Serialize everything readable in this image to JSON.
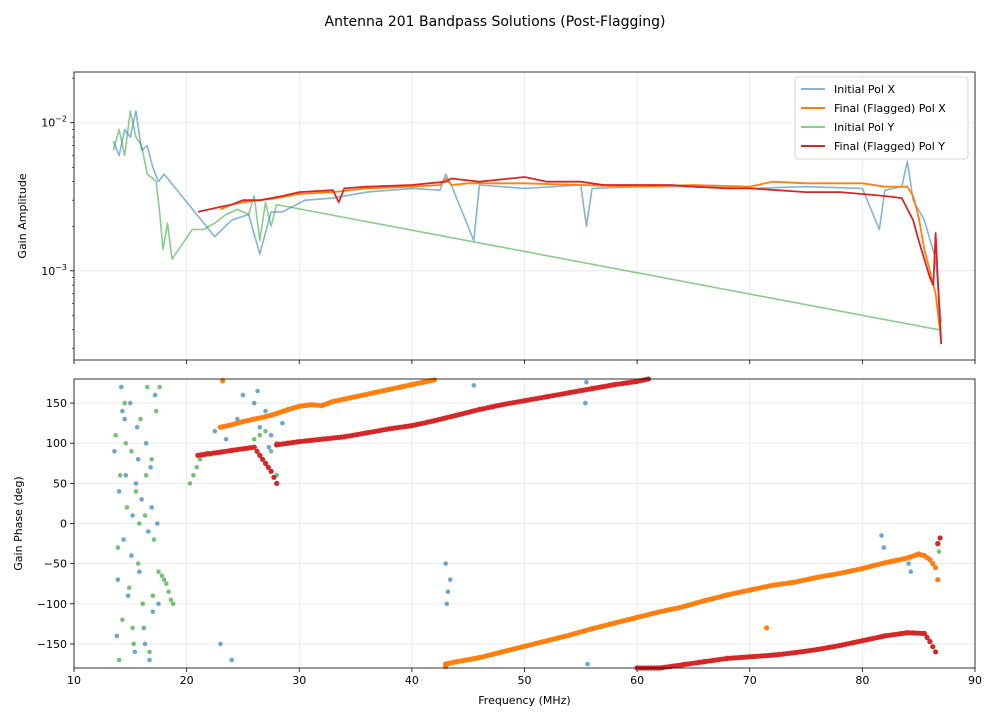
{
  "title": "Antenna 201 Bandpass Solutions (Post-Flagging)",
  "colors": {
    "initial_x": "#1f77b4",
    "final_x": "#ff7f0e",
    "initial_y": "#2ca02c",
    "final_y": "#d62728"
  },
  "chart_data": [
    {
      "type": "line",
      "panel": "top",
      "xlabel": "",
      "ylabel": "Gain Amplitude",
      "yscale": "log",
      "xlim": [
        10,
        90
      ],
      "ylim": [
        0.00025,
        0.022
      ],
      "grid": true,
      "legend_placement": "top-right",
      "y_ticks": [
        {
          "value": 0.01,
          "base": "10",
          "exp": "−2"
        },
        {
          "value": 0.001,
          "base": "10",
          "exp": "−3"
        }
      ],
      "x_ticks": [
        10,
        20,
        30,
        40,
        50,
        60,
        70,
        80,
        90
      ],
      "series": [
        {
          "name": "Initial Pol X",
          "color": "#1f77b4",
          "x": [
            13.5,
            14.0,
            14.5,
            15.0,
            15.5,
            16.0,
            16.5,
            17.0,
            17.5,
            18.0,
            22.5,
            24.0,
            25.5,
            26.5,
            27.5,
            28.5,
            30.5,
            33.0,
            36.0,
            40.0,
            42.5,
            43.0,
            43.5,
            45.5,
            46.0,
            50.0,
            55.0,
            55.5,
            56.0,
            60.0,
            65.0,
            70.0,
            75.0,
            80.0,
            81.5,
            82.0,
            83.5,
            84.0,
            84.5,
            85.5,
            86.5,
            87.0
          ],
          "y": [
            0.0075,
            0.006,
            0.009,
            0.008,
            0.012,
            0.0065,
            0.007,
            0.005,
            0.004,
            0.0045,
            0.0017,
            0.0022,
            0.0024,
            0.0013,
            0.0025,
            0.0025,
            0.003,
            0.0031,
            0.0034,
            0.0036,
            0.0035,
            0.0045,
            0.0038,
            0.0016,
            0.0038,
            0.0036,
            0.0038,
            0.002,
            0.0036,
            0.0037,
            0.0037,
            0.0036,
            0.0037,
            0.0036,
            0.0019,
            0.0035,
            0.0037,
            0.0055,
            0.003,
            0.0022,
            0.0012,
            0.00045
          ]
        },
        {
          "name": "Final (Flagged) Pol X",
          "color": "#ff7f0e",
          "x": [
            23.0,
            24.0,
            25.0,
            26.5,
            28.0,
            30.0,
            33.0,
            36.0,
            40.0,
            42.5,
            43.0,
            43.5,
            45.0,
            50.0,
            55.0,
            60.0,
            65.0,
            70.0,
            72.0,
            75.0,
            78.0,
            80.0,
            82.0,
            84.0,
            84.5,
            85.0,
            85.5,
            86.0,
            86.5,
            86.8,
            87.0
          ],
          "y": [
            0.0026,
            0.0028,
            0.0029,
            0.003,
            0.0031,
            0.0033,
            0.0034,
            0.0036,
            0.0037,
            0.0038,
            0.0042,
            0.0038,
            0.0039,
            0.0039,
            0.0038,
            0.0037,
            0.0038,
            0.0037,
            0.004,
            0.0039,
            0.0039,
            0.0039,
            0.0037,
            0.0037,
            0.0032,
            0.0023,
            0.0014,
            0.001,
            0.0007,
            0.00045,
            0.00033
          ]
        },
        {
          "name": "Initial Pol Y",
          "color": "#2ca02c",
          "x": [
            13.5,
            14.0,
            14.5,
            15.0,
            15.5,
            16.0,
            16.5,
            17.0,
            17.3,
            17.6,
            17.9,
            18.3,
            18.7,
            20.5,
            21.5,
            22.5,
            23.5,
            24.5,
            25.5,
            26.0,
            26.5,
            27.0,
            27.5,
            28.0,
            86.8
          ],
          "y": [
            0.0065,
            0.009,
            0.006,
            0.012,
            0.008,
            0.007,
            0.0045,
            0.0042,
            0.004,
            0.0025,
            0.0014,
            0.0021,
            0.0012,
            0.0019,
            0.0019,
            0.0021,
            0.0024,
            0.0026,
            0.0024,
            0.0032,
            0.0016,
            0.0029,
            0.002,
            0.0028,
            0.0004
          ]
        },
        {
          "name": "Final (Flagged) Pol Y",
          "color": "#d62728",
          "x": [
            21.0,
            22.0,
            23.0,
            24.0,
            25.0,
            26.5,
            27.5,
            28.5,
            30.0,
            33.0,
            33.5,
            34.0,
            36.0,
            40.0,
            43.0,
            43.5,
            46.0,
            50.0,
            52.0,
            55.0,
            57.0,
            60.0,
            63.0,
            65.0,
            68.0,
            70.0,
            75.0,
            78.0,
            80.0,
            82.0,
            83.5,
            84.5,
            85.0,
            85.5,
            86.0,
            86.3,
            86.5,
            86.8,
            87.0
          ],
          "y": [
            0.0025,
            0.0026,
            0.0027,
            0.0028,
            0.003,
            0.003,
            0.0031,
            0.0032,
            0.0034,
            0.0035,
            0.0029,
            0.0036,
            0.0037,
            0.0038,
            0.004,
            0.0042,
            0.004,
            0.0043,
            0.004,
            0.004,
            0.0038,
            0.0038,
            0.0038,
            0.0037,
            0.0036,
            0.0036,
            0.0034,
            0.0034,
            0.0033,
            0.0032,
            0.0031,
            0.0022,
            0.0016,
            0.0012,
            0.0009,
            0.0008,
            0.0018,
            0.0006,
            0.00032
          ]
        }
      ]
    },
    {
      "type": "scatter",
      "panel": "bottom",
      "xlabel": "Frequency (MHz)",
      "ylabel": "Gain Phase (deg)",
      "xlim": [
        10,
        90
      ],
      "ylim": [
        -180,
        180
      ],
      "grid": true,
      "x_ticks": [
        10,
        20,
        30,
        40,
        50,
        60,
        70,
        80,
        90
      ],
      "y_ticks": [
        150,
        100,
        50,
        0,
        -50,
        -100,
        -150
      ],
      "series": [
        {
          "name": "Initial Pol X",
          "color": "#1f77b4",
          "x": [
            13.6,
            13.8,
            14.0,
            14.2,
            14.4,
            14.6,
            14.8,
            15.0,
            15.2,
            15.4,
            15.6,
            15.8,
            16.0,
            16.2,
            16.4,
            16.6,
            16.8,
            17.0,
            17.2,
            17.4,
            13.9,
            14.5,
            15.1,
            15.7,
            16.3,
            16.9,
            17.5,
            14.3,
            15.5,
            16.7,
            22.5,
            23.5,
            24.5,
            25.0,
            26.0,
            26.5,
            27.0,
            27.5,
            28.0,
            28.5,
            23.0,
            24.0,
            26.3,
            27.3,
            43.0,
            43.2,
            43.4,
            43.1,
            45.5,
            55.5,
            55.4,
            55.6,
            81.7,
            81.9,
            84.1,
            84.3
          ],
          "y": [
            90,
            -140,
            40,
            170,
            -20,
            60,
            -90,
            150,
            10,
            -160,
            120,
            -60,
            30,
            -130,
            100,
            -10,
            70,
            -110,
            160,
            0,
            -70,
            130,
            -40,
            80,
            -150,
            20,
            -100,
            140,
            50,
            -170,
            115,
            105,
            130,
            160,
            150,
            120,
            140,
            110,
            100,
            125,
            -150,
            -170,
            165,
            95,
            -50,
            -85,
            -70,
            -100,
            172,
            176,
            150,
            -175,
            -15,
            -30,
            -50,
            -60
          ]
        },
        {
          "name": "Final (Flagged) Pol X",
          "color": "#ff7f0e",
          "x": [
            23.0,
            24.0,
            25.0,
            26.0,
            27.0,
            28.0,
            29.0,
            30.0,
            31.0,
            32.0,
            33.0,
            34.0,
            35.0,
            36.0,
            37.0,
            38.0,
            39.0,
            40.0,
            41.0,
            42.0,
            43.0,
            43.0,
            44.0,
            46.0,
            48.0,
            50.0,
            52.0,
            54.0,
            56.0,
            58.0,
            60.0,
            62.0,
            64.0,
            66.0,
            68.0,
            70.0,
            72.0,
            74.0,
            76.0,
            78.0,
            80.0,
            82.0,
            84.0,
            85.0,
            85.5,
            86.0,
            86.5,
            86.7,
            23.2,
            71.5
          ],
          "y": [
            120,
            123,
            127,
            130,
            133,
            137,
            142,
            146,
            148,
            147,
            152,
            155,
            158,
            161,
            164,
            167,
            170,
            173,
            176,
            179,
            -178,
            -175,
            -172,
            -167,
            -160,
            -153,
            -146,
            -139,
            -131,
            -124,
            -117,
            -110,
            -104,
            -96,
            -89,
            -83,
            -77,
            -73,
            -67,
            -62,
            -56,
            -49,
            -43,
            -38,
            -40,
            -45,
            -55,
            -70,
            178,
            -130
          ]
        },
        {
          "name": "Initial Pol Y",
          "color": "#2ca02c",
          "x": [
            13.7,
            13.9,
            14.1,
            14.3,
            14.5,
            14.7,
            14.9,
            15.1,
            15.3,
            15.5,
            15.7,
            15.9,
            16.1,
            16.3,
            16.5,
            16.7,
            16.9,
            17.1,
            17.3,
            17.5,
            14.0,
            14.6,
            15.2,
            15.8,
            16.4,
            17.0,
            17.6,
            17.8,
            18.0,
            18.2,
            18.4,
            18.6,
            18.8,
            20.3,
            20.6,
            20.9,
            21.2,
            21.5,
            21.8,
            22.1,
            26.0,
            26.5,
            27.0,
            27.5,
            28.0,
            86.8
          ],
          "y": [
            110,
            -30,
            60,
            -120,
            150,
            20,
            -80,
            90,
            -150,
            40,
            -50,
            130,
            -100,
            10,
            170,
            -160,
            80,
            -20,
            140,
            -60,
            -170,
            100,
            -130,
            0,
            60,
            -90,
            170,
            -65,
            -70,
            -75,
            -85,
            -95,
            -100,
            50,
            60,
            70,
            80,
            85,
            88,
            86,
            105,
            110,
            115,
            90,
            60,
            -35
          ]
        },
        {
          "name": "Final (Flagged) Pol Y",
          "color": "#d62728",
          "x": [
            21.0,
            22.0,
            23.0,
            24.0,
            25.0,
            26.0,
            26.5,
            27.0,
            27.5,
            28.0,
            28.0,
            29.0,
            30.0,
            32.0,
            34.0,
            36.0,
            38.0,
            40.0,
            42.0,
            44.0,
            46.0,
            48.0,
            50.0,
            52.0,
            54.0,
            56.0,
            58.0,
            60.0,
            61.0,
            60.0,
            62.0,
            64.0,
            66.0,
            68.0,
            70.0,
            72.0,
            74.0,
            76.0,
            78.0,
            80.0,
            82.0,
            84.0,
            85.5,
            86.0,
            86.5,
            86.7,
            86.9
          ],
          "y": [
            85,
            87,
            89,
            91,
            93,
            95,
            85,
            75,
            65,
            50,
            98,
            100,
            102,
            105,
            108,
            113,
            118,
            122,
            128,
            135,
            142,
            148,
            153,
            158,
            163,
            168,
            173,
            177,
            180,
            -180,
            -180,
            -176,
            -172,
            -168,
            -166,
            -164,
            -161,
            -157,
            -152,
            -146,
            -140,
            -136,
            -137,
            -147,
            -160,
            -25,
            -18
          ]
        }
      ]
    }
  ]
}
